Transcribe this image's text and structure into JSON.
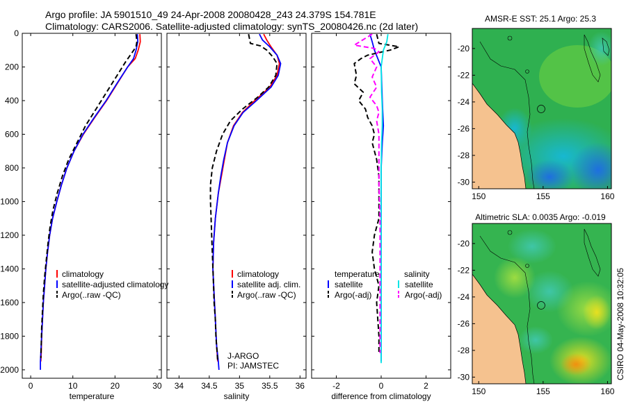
{
  "header": {
    "line1": "Argo profile: JA 5901510_49 24-Apr-2008 20080428_243 24.379S 154.781E",
    "line2": "Climatology: CARS2006. Satellite-adjusted climatology: synTS_20080426.nc (2d later)"
  },
  "colors": {
    "red": "#ff0000",
    "blue": "#0000ff",
    "black": "#000000",
    "cyan": "#00e5e5",
    "magenta": "#ff00ff",
    "land": "#f5c28f"
  },
  "depth_axis": {
    "ticks": [
      "0",
      "200",
      "400",
      "600",
      "800",
      "1000",
      "1200",
      "1400",
      "1600",
      "1800",
      "2000"
    ],
    "range": [
      0,
      2050
    ]
  },
  "chart_data": [
    {
      "type": "line",
      "id": "temperature",
      "xlabel": "temperature",
      "xlim": [
        -2,
        31
      ],
      "ylim": [
        0,
        2050
      ],
      "xticks": [
        "0",
        "10",
        "20",
        "30"
      ],
      "legend": [
        "climatology",
        "satellite-adjusted climatology",
        "Argo(..raw -QC)"
      ],
      "series": [
        {
          "name": "climatology",
          "color": "red",
          "dash": "",
          "points": [
            [
              25.9,
              5
            ],
            [
              26.0,
              50
            ],
            [
              25.5,
              100
            ],
            [
              24.8,
              150
            ],
            [
              23.0,
              200
            ],
            [
              20.5,
              300
            ],
            [
              18.0,
              400
            ],
            [
              15.2,
              500
            ],
            [
              12.5,
              600
            ],
            [
              10.3,
              700
            ],
            [
              8.6,
              800
            ],
            [
              7.3,
              900
            ],
            [
              6.2,
              1000
            ],
            [
              5.2,
              1100
            ],
            [
              4.5,
              1200
            ],
            [
              4.0,
              1300
            ],
            [
              3.6,
              1400
            ],
            [
              3.3,
              1500
            ],
            [
              3.0,
              1600
            ],
            [
              2.8,
              1700
            ],
            [
              2.6,
              1800
            ],
            [
              2.5,
              1900
            ],
            [
              2.4,
              1950
            ]
          ]
        },
        {
          "name": "satellite-adjusted climatology",
          "color": "blue",
          "dash": "",
          "points": [
            [
              25.3,
              5
            ],
            [
              25.4,
              50
            ],
            [
              25.0,
              100
            ],
            [
              24.4,
              150
            ],
            [
              23.0,
              200
            ],
            [
              20.4,
              300
            ],
            [
              17.9,
              400
            ],
            [
              15.1,
              500
            ],
            [
              12.4,
              600
            ],
            [
              10.3,
              700
            ],
            [
              8.6,
              800
            ],
            [
              7.3,
              900
            ],
            [
              6.2,
              1000
            ],
            [
              5.2,
              1100
            ],
            [
              4.5,
              1200
            ],
            [
              4.0,
              1300
            ],
            [
              3.6,
              1400
            ],
            [
              3.3,
              1500
            ],
            [
              3.0,
              1600
            ],
            [
              2.8,
              1700
            ],
            [
              2.6,
              1800
            ],
            [
              2.4,
              1900
            ],
            [
              2.3,
              1950
            ],
            [
              2.3,
              2000
            ]
          ]
        },
        {
          "name": "Argo(..raw -QC)",
          "color": "black",
          "dash": "7,4",
          "points": [
            [
              25.0,
              5
            ],
            [
              25.2,
              50
            ],
            [
              25.0,
              80
            ],
            [
              23.9,
              120
            ],
            [
              22.5,
              170
            ],
            [
              20.5,
              250
            ],
            [
              18.0,
              350
            ],
            [
              15.5,
              450
            ],
            [
              13.0,
              550
            ],
            [
              11.0,
              650
            ],
            [
              9.0,
              750
            ],
            [
              7.5,
              850
            ],
            [
              6.3,
              950
            ],
            [
              5.3,
              1050
            ],
            [
              4.6,
              1150
            ],
            [
              4.1,
              1250
            ],
            [
              3.7,
              1350
            ],
            [
              3.3,
              1450
            ],
            [
              3.0,
              1550
            ],
            [
              2.8,
              1650
            ],
            [
              2.6,
              1750
            ],
            [
              2.5,
              1850
            ],
            [
              2.4,
              1930
            ]
          ]
        }
      ]
    },
    {
      "type": "line",
      "id": "salinity",
      "xlabel": "salinity",
      "xlim": [
        33.8,
        36.1
      ],
      "ylim": [
        0,
        2050
      ],
      "xticks": [
        "34",
        "34.5",
        "35",
        "35.5",
        "36"
      ],
      "legend": [
        "climatology",
        "satellite adj. clim.",
        "Argo(..raw -QC)"
      ],
      "annotation": [
        "J-ARGO",
        "PI: JAMSTEC"
      ],
      "series": [
        {
          "name": "climatology",
          "color": "red",
          "dash": "",
          "points": [
            [
              35.4,
              5
            ],
            [
              35.45,
              40
            ],
            [
              35.52,
              80
            ],
            [
              35.62,
              130
            ],
            [
              35.66,
              180
            ],
            [
              35.62,
              250
            ],
            [
              35.5,
              320
            ],
            [
              35.25,
              400
            ],
            [
              35.05,
              470
            ],
            [
              34.9,
              550
            ],
            [
              34.8,
              650
            ],
            [
              34.75,
              750
            ],
            [
              34.7,
              850
            ],
            [
              34.65,
              950
            ],
            [
              34.6,
              1100
            ],
            [
              34.57,
              1250
            ],
            [
              34.56,
              1400
            ],
            [
              34.58,
              1550
            ],
            [
              34.6,
              1700
            ],
            [
              34.62,
              1850
            ],
            [
              34.64,
              1950
            ]
          ]
        },
        {
          "name": "satellite adj. clim.",
          "color": "blue",
          "dash": "",
          "points": [
            [
              35.33,
              5
            ],
            [
              35.38,
              40
            ],
            [
              35.5,
              80
            ],
            [
              35.62,
              130
            ],
            [
              35.68,
              180
            ],
            [
              35.64,
              250
            ],
            [
              35.52,
              320
            ],
            [
              35.28,
              400
            ],
            [
              35.06,
              470
            ],
            [
              34.91,
              550
            ],
            [
              34.8,
              650
            ],
            [
              34.74,
              750
            ],
            [
              34.69,
              850
            ],
            [
              34.65,
              950
            ],
            [
              34.6,
              1100
            ],
            [
              34.57,
              1250
            ],
            [
              34.56,
              1400
            ],
            [
              34.58,
              1550
            ],
            [
              34.6,
              1700
            ],
            [
              34.62,
              1850
            ],
            [
              34.65,
              1950
            ],
            [
              34.66,
              2000
            ]
          ]
        },
        {
          "name": "Argo(..raw -QC)",
          "color": "black",
          "dash": "7,4",
          "points": [
            [
              35.15,
              5
            ],
            [
              35.18,
              60
            ],
            [
              35.35,
              75
            ],
            [
              35.45,
              100
            ],
            [
              35.55,
              140
            ],
            [
              35.62,
              180
            ],
            [
              35.6,
              250
            ],
            [
              35.48,
              320
            ],
            [
              35.3,
              380
            ],
            [
              35.05,
              450
            ],
            [
              34.85,
              520
            ],
            [
              34.72,
              600
            ],
            [
              34.62,
              700
            ],
            [
              34.55,
              800
            ],
            [
              34.52,
              900
            ],
            [
              34.52,
              1000
            ],
            [
              34.53,
              1100
            ],
            [
              34.54,
              1200
            ],
            [
              34.55,
              1300
            ],
            [
              34.56,
              1400
            ],
            [
              34.57,
              1500
            ],
            [
              34.58,
              1600
            ],
            [
              34.6,
              1700
            ],
            [
              34.61,
              1800
            ],
            [
              34.63,
              1900
            ],
            [
              34.64,
              1950
            ]
          ]
        }
      ]
    },
    {
      "type": "line",
      "id": "difference",
      "xlabel": "difference from climatology",
      "xlim": [
        -3.1,
        3.1
      ],
      "ylim": [
        0,
        2050
      ],
      "xticks": [
        "-2",
        "0",
        "2"
      ],
      "legend": [
        "temperature",
        "salinity",
        "satellite",
        "satellite",
        "Argo(-adj)",
        "Argo(-adj)"
      ],
      "series": [
        {
          "name": "temperature satellite",
          "color": "blue",
          "dash": "",
          "points": [
            [
              -0.5,
              5
            ],
            [
              -0.4,
              50
            ],
            [
              -0.3,
              100
            ],
            [
              0,
              200
            ],
            [
              0.05,
              400
            ],
            [
              0.1,
              550
            ],
            [
              0.05,
              650
            ],
            [
              0,
              800
            ],
            [
              0,
              1000
            ],
            [
              0,
              1200
            ],
            [
              0,
              1400
            ],
            [
              0,
              1600
            ],
            [
              0,
              1800
            ],
            [
              0,
              1950
            ]
          ]
        },
        {
          "name": "temperature Argo(-adj)",
          "color": "black",
          "dash": "7,4",
          "points": [
            [
              -0.2,
              5
            ],
            [
              -0.1,
              60
            ],
            [
              0.8,
              80
            ],
            [
              0.4,
              100
            ],
            [
              -0.6,
              130
            ],
            [
              -0.9,
              150
            ],
            [
              -1.2,
              180
            ],
            [
              -1.1,
              250
            ],
            [
              -1.2,
              300
            ],
            [
              -0.8,
              350
            ],
            [
              -1.0,
              400
            ],
            [
              -0.7,
              450
            ],
            [
              -0.6,
              500
            ],
            [
              -0.4,
              550
            ],
            [
              -0.3,
              600
            ],
            [
              -0.4,
              650
            ],
            [
              -0.2,
              750
            ],
            [
              -0.1,
              850
            ],
            [
              -0.1,
              1000
            ],
            [
              -0.1,
              1100
            ],
            [
              -0.3,
              1200
            ],
            [
              -0.4,
              1300
            ],
            [
              -0.3,
              1400
            ],
            [
              -0.1,
              1500
            ],
            [
              -0.2,
              1600
            ],
            [
              -0.1,
              1800
            ],
            [
              -0.1,
              1900
            ]
          ]
        },
        {
          "name": "salinity satellite",
          "color": "cyan",
          "dash": "",
          "points": [
            [
              0.3,
              5
            ],
            [
              0.25,
              50
            ],
            [
              0.1,
              100
            ],
            [
              0.05,
              150
            ],
            [
              0,
              200
            ],
            [
              0.02,
              350
            ],
            [
              0.05,
              450
            ],
            [
              0.05,
              550
            ],
            [
              0.02,
              650
            ],
            [
              0,
              800
            ],
            [
              0,
              1000
            ],
            [
              0,
              1200
            ],
            [
              0,
              1400
            ],
            [
              0,
              1600
            ],
            [
              0,
              1800
            ],
            [
              0,
              1960
            ]
          ]
        },
        {
          "name": "salinity Argo(-adj)",
          "color": "magenta",
          "dash": "7,4",
          "points": [
            [
              -0.4,
              5
            ],
            [
              -1.2,
              70
            ],
            [
              -0.3,
              90
            ],
            [
              -0.1,
              110
            ],
            [
              -0.5,
              150
            ],
            [
              -0.2,
              200
            ],
            [
              -0.4,
              260
            ],
            [
              -0.2,
              320
            ],
            [
              -0.5,
              380
            ],
            [
              -0.2,
              430
            ],
            [
              -0.1,
              470
            ],
            [
              -0.2,
              520
            ],
            [
              -0.1,
              600
            ],
            [
              -0.1,
              700
            ],
            [
              -0.1,
              800
            ],
            [
              -0.1,
              900
            ],
            [
              -0.05,
              1100
            ],
            [
              -0.05,
              1300
            ],
            [
              -0.05,
              1500
            ],
            [
              -0.05,
              1700
            ],
            [
              -0.05,
              1900
            ]
          ]
        }
      ]
    },
    {
      "type": "heatmap",
      "id": "sst-map",
      "title": "AMSR-E SST: 25.1 Argo: 25.3",
      "xlim": [
        149.5,
        160.3
      ],
      "ylim": [
        -30.5,
        -18.5
      ],
      "xticks": [
        "150",
        "155",
        "160"
      ],
      "yticks": [
        "-20",
        "-22",
        "-24",
        "-26",
        "-28",
        "-30"
      ]
    },
    {
      "type": "heatmap",
      "id": "sla-map",
      "title": "Altimetric SLA: 0.0035 Argo: -0.019",
      "xlim": [
        149.5,
        160.3
      ],
      "ylim": [
        -30.5,
        -18.5
      ],
      "xticks": [
        "150",
        "155",
        "160"
      ],
      "yticks": [
        "-20",
        "-22",
        "-24",
        "-26",
        "-28",
        "-30"
      ]
    }
  ],
  "footer": {
    "stamp": "CSIRO 04-May-2008 10:32:05"
  }
}
